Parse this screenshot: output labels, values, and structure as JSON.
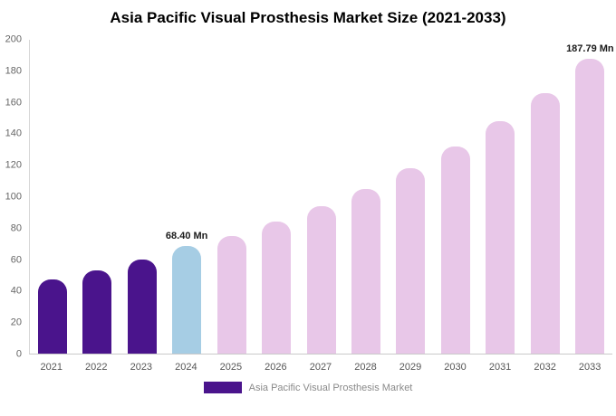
{
  "chart_data": {
    "type": "bar",
    "title": "Asia Pacific Visual Prosthesis Market Size (2021-2033)",
    "categories": [
      "2021",
      "2022",
      "2023",
      "2024",
      "2025",
      "2026",
      "2027",
      "2028",
      "2029",
      "2030",
      "2031",
      "2032",
      "2033"
    ],
    "values": [
      47,
      53,
      60,
      68.4,
      75,
      84,
      94,
      105,
      118,
      132,
      148,
      166,
      187.79
    ],
    "unit": "Mn",
    "xlabel": "",
    "ylabel": "",
    "ylim": [
      0,
      200
    ],
    "ytick_step": 20,
    "grid": false,
    "colors": {
      "historical": "#4a148c",
      "current": "#a6cde4",
      "forecast": "#e8c7e8"
    },
    "bar_roles": [
      "historical",
      "historical",
      "historical",
      "current",
      "forecast",
      "forecast",
      "forecast",
      "forecast",
      "forecast",
      "forecast",
      "forecast",
      "forecast",
      "forecast"
    ],
    "annotations": [
      {
        "index": 3,
        "text": "68.40 Mn"
      },
      {
        "index": 12,
        "text": "187.79 Mn"
      }
    ],
    "legend": {
      "position": "bottom",
      "label": "Asia Pacific Visual Prosthesis Market",
      "swatch_color": "#4a148c"
    }
  }
}
